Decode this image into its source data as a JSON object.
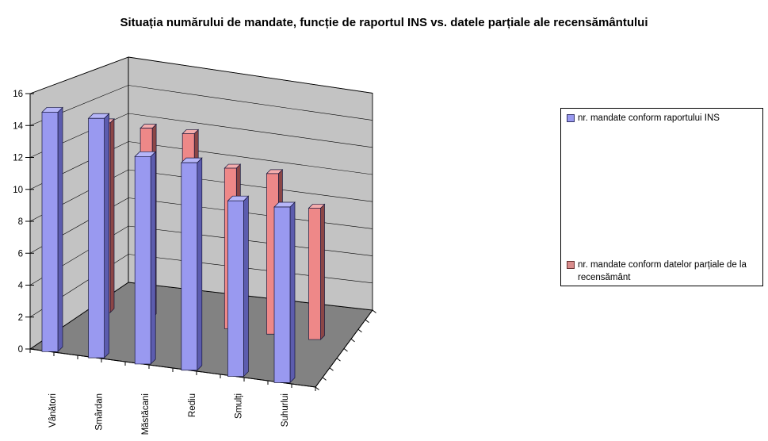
{
  "title": "Situația numărului de mandate, funcție de raportul INS vs. datele parțiale ale recensământului",
  "chart_data": {
    "type": "bar",
    "subtype": "3d-column",
    "title": "Situația numărului de mandate, funcție de raportul INS vs. datele parțiale ale recensământului",
    "categories": [
      "Vânători",
      "Smârdan",
      "Măstăcani",
      "Rediu",
      "Smulți",
      "Suhurlui"
    ],
    "series": [
      {
        "name": "nr. mandate conform raportului INS",
        "values": [
          15,
          15,
          13,
          13,
          11,
          11
        ],
        "color_front": "#9999f0",
        "color_side": "#5c5cae",
        "color_top": "#b6b6f8"
      },
      {
        "name": "nr. mandate conform datelor parțiale de la recensământ",
        "values": [
          13,
          13,
          13,
          11,
          11,
          9
        ],
        "color_front": "#ee8888",
        "color_side": "#8c4646",
        "color_top": "#f4acac"
      }
    ],
    "xlabel": "",
    "ylabel": "",
    "ylim": [
      0,
      16
    ],
    "ytick_step": 2,
    "grid": true,
    "legend_position": "right",
    "wall_color": "#c3c3c3",
    "floor_color": "#828282",
    "line_color": "#000000"
  }
}
